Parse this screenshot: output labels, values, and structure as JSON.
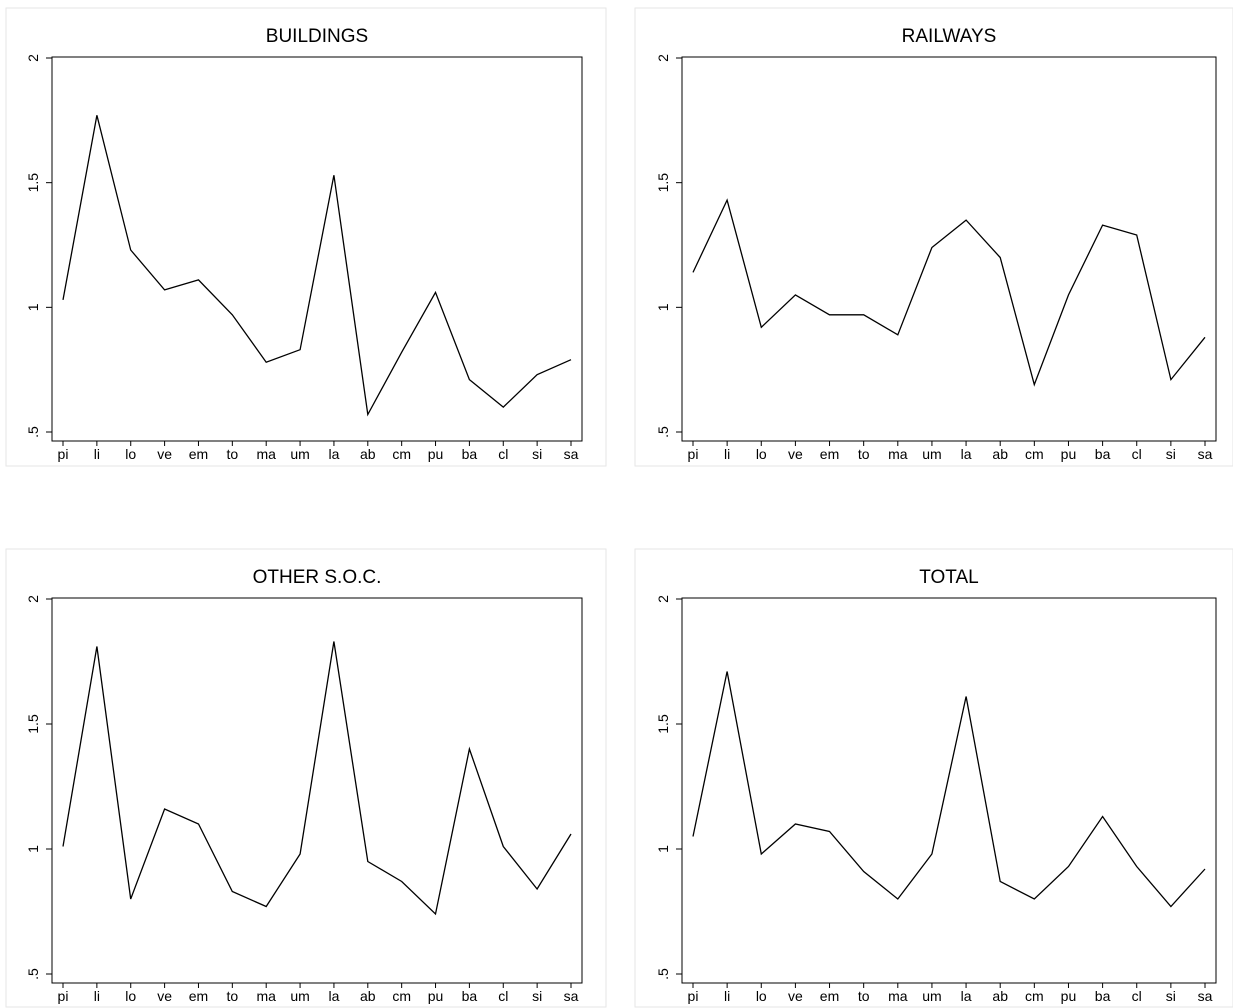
{
  "chart_data": [
    {
      "type": "line",
      "title": "BUILDINGS",
      "categories": [
        "pi",
        "li",
        "lo",
        "ve",
        "em",
        "to",
        "ma",
        "um",
        "la",
        "ab",
        "cm",
        "pu",
        "ba",
        "cl",
        "si",
        "sa"
      ],
      "values": [
        1.03,
        1.77,
        1.23,
        1.07,
        1.11,
        0.97,
        0.78,
        0.83,
        1.53,
        0.57,
        0.82,
        1.06,
        0.71,
        0.6,
        0.73,
        0.79
      ],
      "ylim": [
        0.5,
        2
      ],
      "yticks": [
        0.5,
        1,
        1.5,
        2
      ],
      "ytick_labels": [
        ".5",
        "1",
        "1.5",
        "2"
      ],
      "grid": false
    },
    {
      "type": "line",
      "title": "RAILWAYS",
      "categories": [
        "pi",
        "li",
        "lo",
        "ve",
        "em",
        "to",
        "ma",
        "um",
        "la",
        "ab",
        "cm",
        "pu",
        "ba",
        "cl",
        "si",
        "sa"
      ],
      "values": [
        1.14,
        1.43,
        0.92,
        1.05,
        0.97,
        0.97,
        0.89,
        1.24,
        1.35,
        1.2,
        0.69,
        1.05,
        1.33,
        1.29,
        0.71,
        0.88
      ],
      "ylim": [
        0.5,
        2
      ],
      "yticks": [
        0.5,
        1,
        1.5,
        2
      ],
      "ytick_labels": [
        ".5",
        "1",
        "1.5",
        "2"
      ],
      "grid": false
    },
    {
      "type": "line",
      "title": "OTHER S.O.C.",
      "categories": [
        "pi",
        "li",
        "lo",
        "ve",
        "em",
        "to",
        "ma",
        "um",
        "la",
        "ab",
        "cm",
        "pu",
        "ba",
        "cl",
        "si",
        "sa"
      ],
      "values": [
        1.01,
        1.81,
        0.8,
        1.16,
        1.1,
        0.83,
        0.77,
        0.98,
        1.83,
        0.95,
        0.87,
        0.74,
        1.4,
        1.01,
        0.84,
        1.06
      ],
      "ylim": [
        0.5,
        2
      ],
      "yticks": [
        0.5,
        1,
        1.5,
        2
      ],
      "ytick_labels": [
        ".5",
        "1",
        "1.5",
        "2"
      ],
      "grid": false
    },
    {
      "type": "line",
      "title": "TOTAL",
      "categories": [
        "pi",
        "li",
        "lo",
        "ve",
        "em",
        "to",
        "ma",
        "um",
        "la",
        "ab",
        "cm",
        "pu",
        "ba",
        "cl",
        "si",
        "sa"
      ],
      "values": [
        1.05,
        1.71,
        0.98,
        1.1,
        1.07,
        0.91,
        0.8,
        0.98,
        1.61,
        0.87,
        0.8,
        0.93,
        1.13,
        0.93,
        0.77,
        0.92
      ],
      "ylim": [
        0.5,
        2
      ],
      "yticks": [
        0.5,
        1,
        1.5,
        2
      ],
      "ytick_labels": [
        ".5",
        "1",
        "1.5",
        "2"
      ],
      "grid": false
    }
  ]
}
